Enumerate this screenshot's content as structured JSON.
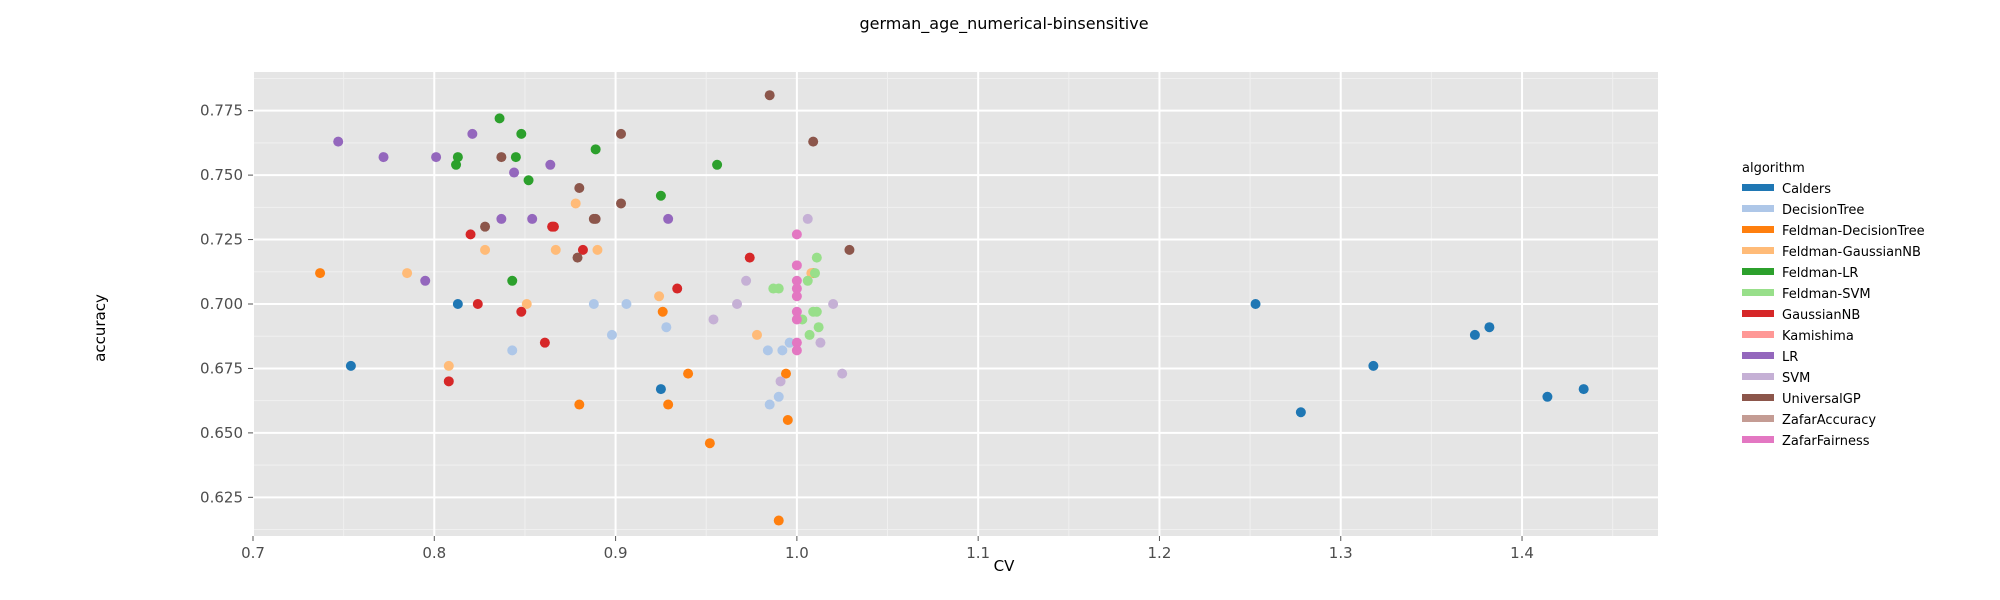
{
  "chart_data": {
    "type": "scatter",
    "title": "german_age_numerical-binsensitive",
    "xlabel": "CV",
    "ylabel": "accuracy",
    "xlim": [
      0.7,
      1.475
    ],
    "ylim": [
      0.61,
      0.79
    ],
    "xticks": [
      "0.7",
      "0.8",
      "0.9",
      "1.0",
      "1.1",
      "1.2",
      "1.3",
      "1.4"
    ],
    "yticks": [
      "0.625",
      "0.650",
      "0.675",
      "0.700",
      "0.725",
      "0.750",
      "0.775"
    ],
    "grid": true,
    "legend_title": "algorithm",
    "legend_position": "right",
    "series": [
      {
        "name": "Calders",
        "color": "#1f77b4",
        "points": [
          [
            0.754,
            0.676
          ],
          [
            0.813,
            0.7
          ],
          [
            0.925,
            0.667
          ],
          [
            1.253,
            0.7
          ],
          [
            1.278,
            0.658
          ],
          [
            1.318,
            0.676
          ],
          [
            1.374,
            0.688
          ],
          [
            1.382,
            0.691
          ],
          [
            1.414,
            0.664
          ],
          [
            1.434,
            0.667
          ]
        ]
      },
      {
        "name": "DecisionTree",
        "color": "#aec7e8",
        "points": [
          [
            0.843,
            0.682
          ],
          [
            0.888,
            0.7
          ],
          [
            0.898,
            0.688
          ],
          [
            0.906,
            0.7
          ],
          [
            0.928,
            0.691
          ],
          [
            0.984,
            0.682
          ],
          [
            0.985,
            0.661
          ],
          [
            0.99,
            0.664
          ],
          [
            0.992,
            0.682
          ],
          [
            0.996,
            0.685
          ]
        ]
      },
      {
        "name": "Feldman-DecisionTree",
        "color": "#ff7f0e",
        "points": [
          [
            0.737,
            0.712
          ],
          [
            0.88,
            0.661
          ],
          [
            0.926,
            0.697
          ],
          [
            0.929,
            0.661
          ],
          [
            0.94,
            0.673
          ],
          [
            0.952,
            0.646
          ],
          [
            0.99,
            0.616
          ],
          [
            0.994,
            0.673
          ],
          [
            0.995,
            0.655
          ],
          [
            1.009,
            0.712
          ]
        ]
      },
      {
        "name": "Feldman-GaussianNB",
        "color": "#ffbb78",
        "points": [
          [
            0.785,
            0.712
          ],
          [
            0.808,
            0.676
          ],
          [
            0.828,
            0.721
          ],
          [
            0.851,
            0.7
          ],
          [
            0.867,
            0.721
          ],
          [
            0.878,
            0.739
          ],
          [
            0.89,
            0.721
          ],
          [
            0.924,
            0.703
          ],
          [
            0.978,
            0.688
          ],
          [
            1.008,
            0.712
          ]
        ]
      },
      {
        "name": "Feldman-LR",
        "color": "#2ca02c",
        "points": [
          [
            0.812,
            0.754
          ],
          [
            0.813,
            0.757
          ],
          [
            0.836,
            0.772
          ],
          [
            0.843,
            0.709
          ],
          [
            0.845,
            0.757
          ],
          [
            0.848,
            0.766
          ],
          [
            0.852,
            0.748
          ],
          [
            0.889,
            0.76
          ],
          [
            0.925,
            0.742
          ],
          [
            0.956,
            0.754
          ]
        ]
      },
      {
        "name": "Feldman-SVM",
        "color": "#98df8a",
        "points": [
          [
            0.987,
            0.706
          ],
          [
            0.99,
            0.706
          ],
          [
            1.003,
            0.694
          ],
          [
            1.006,
            0.709
          ],
          [
            1.007,
            0.688
          ],
          [
            1.009,
            0.697
          ],
          [
            1.01,
            0.712
          ],
          [
            1.011,
            0.718
          ],
          [
            1.011,
            0.697
          ],
          [
            1.012,
            0.691
          ]
        ]
      },
      {
        "name": "GaussianNB",
        "color": "#d62728",
        "points": [
          [
            0.808,
            0.67
          ],
          [
            0.82,
            0.727
          ],
          [
            0.824,
            0.7
          ],
          [
            0.848,
            0.697
          ],
          [
            0.861,
            0.685
          ],
          [
            0.865,
            0.73
          ],
          [
            0.866,
            0.73
          ],
          [
            0.882,
            0.721
          ],
          [
            0.934,
            0.706
          ],
          [
            0.974,
            0.718
          ]
        ]
      },
      {
        "name": "Kamishima",
        "color": "#ff9896",
        "points": []
      },
      {
        "name": "LR",
        "color": "#9467bd",
        "points": [
          [
            0.747,
            0.763
          ],
          [
            0.772,
            0.757
          ],
          [
            0.795,
            0.709
          ],
          [
            0.801,
            0.757
          ],
          [
            0.821,
            0.766
          ],
          [
            0.837,
            0.733
          ],
          [
            0.844,
            0.751
          ],
          [
            0.854,
            0.733
          ],
          [
            0.864,
            0.754
          ],
          [
            0.929,
            0.733
          ]
        ]
      },
      {
        "name": "SVM",
        "color": "#c5b0d5",
        "points": [
          [
            0.954,
            0.694
          ],
          [
            0.967,
            0.7
          ],
          [
            0.972,
            0.709
          ],
          [
            0.991,
            0.67
          ],
          [
            1.006,
            0.733
          ],
          [
            1.013,
            0.685
          ],
          [
            1.02,
            0.7
          ],
          [
            1.025,
            0.673
          ]
        ]
      },
      {
        "name": "UniversalGP",
        "color": "#8c564b",
        "points": [
          [
            0.828,
            0.73
          ],
          [
            0.837,
            0.757
          ],
          [
            0.879,
            0.718
          ],
          [
            0.88,
            0.745
          ],
          [
            0.888,
            0.733
          ],
          [
            0.889,
            0.733
          ],
          [
            0.903,
            0.739
          ],
          [
            0.903,
            0.766
          ],
          [
            0.985,
            0.781
          ],
          [
            1.009,
            0.763
          ],
          [
            1.029,
            0.721
          ]
        ]
      },
      {
        "name": "ZafarAccuracy",
        "color": "#c49c94",
        "points": []
      },
      {
        "name": "ZafarFairness",
        "color": "#e377c2",
        "points": [
          [
            1.0,
            0.727
          ],
          [
            1.0,
            0.715
          ],
          [
            1.0,
            0.709
          ],
          [
            1.0,
            0.706
          ],
          [
            1.0,
            0.703
          ],
          [
            1.0,
            0.697
          ],
          [
            1.0,
            0.694
          ],
          [
            1.0,
            0.685
          ],
          [
            1.0,
            0.682
          ]
        ]
      }
    ]
  }
}
